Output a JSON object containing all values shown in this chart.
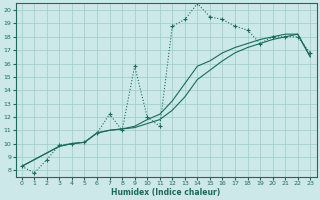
{
  "xlabel": "Humidex (Indice chaleur)",
  "ylabel": "",
  "bg_color": "#cce8e8",
  "grid_color": "#99cccc",
  "line_color": "#1a6b5a",
  "xlim": [
    -0.5,
    23.5
  ],
  "ylim": [
    7.5,
    20.5
  ],
  "xticks": [
    0,
    1,
    2,
    3,
    4,
    5,
    6,
    7,
    8,
    9,
    10,
    11,
    12,
    13,
    14,
    15,
    16,
    17,
    18,
    19,
    20,
    21,
    22,
    23
  ],
  "yticks": [
    8,
    9,
    10,
    11,
    12,
    13,
    14,
    15,
    16,
    17,
    18,
    19,
    20
  ],
  "line1_x": [
    0,
    1,
    2,
    3,
    4,
    5,
    6,
    7,
    8,
    9,
    10,
    11,
    12,
    13,
    14,
    15,
    16,
    17,
    18,
    19,
    20,
    21,
    22,
    23
  ],
  "line1_y": [
    8.3,
    7.8,
    8.8,
    9.9,
    10.0,
    10.1,
    10.8,
    12.2,
    11.0,
    15.8,
    12.0,
    11.3,
    18.8,
    19.3,
    20.5,
    19.5,
    19.3,
    18.8,
    18.5,
    17.5,
    18.0,
    18.0,
    18.0,
    16.8
  ],
  "line2_x": [
    0,
    3,
    4,
    5,
    6,
    7,
    8,
    9,
    10,
    11,
    12,
    13,
    14,
    15,
    16,
    17,
    18,
    19,
    20,
    21,
    22,
    23
  ],
  "line2_y": [
    8.3,
    9.8,
    10.0,
    10.1,
    10.8,
    11.0,
    11.1,
    11.2,
    11.5,
    11.8,
    12.5,
    13.5,
    14.8,
    15.5,
    16.2,
    16.8,
    17.2,
    17.5,
    17.8,
    18.0,
    18.2,
    16.5
  ],
  "line3_x": [
    0,
    3,
    4,
    5,
    6,
    7,
    8,
    9,
    10,
    11,
    12,
    13,
    14,
    15,
    16,
    17,
    18,
    19,
    20,
    21,
    22,
    23
  ],
  "line3_y": [
    8.3,
    9.8,
    10.0,
    10.1,
    10.8,
    11.0,
    11.1,
    11.3,
    11.8,
    12.2,
    13.2,
    14.5,
    15.8,
    16.2,
    16.8,
    17.2,
    17.5,
    17.8,
    18.0,
    18.2,
    18.2,
    16.5
  ]
}
